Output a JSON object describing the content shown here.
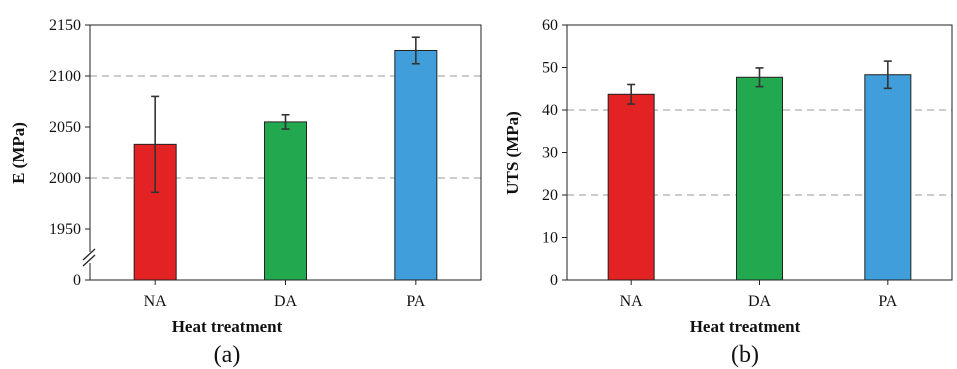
{
  "chart_data": [
    {
      "type": "bar",
      "panel_label": "(a)",
      "categories": [
        "NA",
        "DA",
        "PA"
      ],
      "values": [
        2033,
        2055,
        2125
      ],
      "errors": [
        47,
        7,
        13
      ],
      "colors": [
        "#e32323",
        "#22a84e",
        "#409fda"
      ],
      "xlabel": "Heat treatment",
      "ylabel": "E (MPa)",
      "axis_break": true,
      "yticks": [
        0,
        1950,
        2000,
        2050,
        2100,
        2150
      ],
      "grid_lines": [
        2000,
        2100
      ],
      "grid": "dashed horizontal"
    },
    {
      "type": "bar",
      "panel_label": "(b)",
      "categories": [
        "NA",
        "DA",
        "PA"
      ],
      "values": [
        43.7,
        47.7,
        48.3
      ],
      "errors": [
        2.3,
        2.2,
        3.2
      ],
      "colors": [
        "#e32323",
        "#22a84e",
        "#409fda"
      ],
      "xlabel": "Heat treatment",
      "ylabel": "UTS (MPa)",
      "ylim": [
        0,
        60
      ],
      "yticks": [
        0,
        10,
        20,
        30,
        40,
        50,
        60
      ],
      "grid_lines": [
        20,
        40
      ],
      "grid": "dashed horizontal"
    }
  ]
}
